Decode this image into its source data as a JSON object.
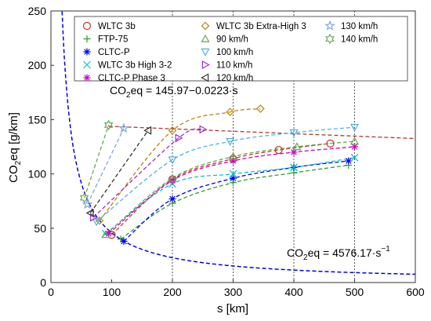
{
  "chart_data": {
    "type": "line",
    "xlabel": "s [km]",
    "ylabel": "CO2eq [g/km]",
    "xlim": [
      0,
      600
    ],
    "ylim": [
      0,
      250
    ],
    "xticks": [
      0,
      100,
      200,
      300,
      400,
      500,
      600
    ],
    "yticks": [
      0,
      50,
      100,
      150,
      200,
      250
    ],
    "grid": "vertical dotted lines at s = 200, 300, 400, 500",
    "legend_position": "top, inside, 3 columns",
    "series": [
      {
        "name": "WLTC 3b",
        "marker": "circle",
        "color": "#c0392b",
        "x": [
          100,
          200,
          300,
          375,
          460
        ],
        "y": [
          44,
          95,
          114,
          122,
          128
        ]
      },
      {
        "name": "FTP-75",
        "marker": "plus",
        "color": "#2ca02c",
        "x": [
          115,
          200,
          300,
          400,
          490
        ],
        "y": [
          40,
          73,
          92,
          101,
          108
        ]
      },
      {
        "name": "CLTC-P",
        "marker": "asterisk",
        "color": "#0000ee",
        "x": [
          120,
          200,
          300,
          400,
          490
        ],
        "y": [
          38,
          77,
          96,
          106,
          112
        ]
      },
      {
        "name": "WLTC 3b High 3-2",
        "marker": "x",
        "color": "#00c8c8",
        "x": [
          90,
          200,
          300,
          400,
          500
        ],
        "y": [
          45,
          91,
          100,
          106,
          115
        ]
      },
      {
        "name": "CLTC-P Phase 3",
        "marker": "asterisk",
        "color": "#cc00cc",
        "x": [
          95,
          200,
          300,
          400,
          500
        ],
        "y": [
          45,
          94,
          112,
          120,
          125
        ]
      },
      {
        "name": "WLTC 3b Extra-High 3",
        "marker": "diamond",
        "color": "#b8860b",
        "x": [
          80,
          200,
          295,
          345
        ],
        "y": [
          57,
          140,
          157,
          160
        ]
      },
      {
        "name": "90 km/h",
        "marker": "triangle-up",
        "color": "#6aa84f",
        "x": [
          90,
          200,
          300,
          405,
          500
        ],
        "y": [
          44,
          96,
          116,
          125,
          130
        ]
      },
      {
        "name": "100 km/h",
        "marker": "triangle-down",
        "color": "#4fb3e0",
        "x": [
          75,
          200,
          295,
          400,
          500
        ],
        "y": [
          56,
          113,
          130,
          138,
          143
        ]
      },
      {
        "name": "110 km/h",
        "marker": "triangle-right",
        "color": "#9b30c8",
        "x": [
          70,
          210,
          250
        ],
        "y": [
          60,
          133,
          141
        ]
      },
      {
        "name": "120 km/h",
        "marker": "triangle-left",
        "color": "#333333",
        "x": [
          65,
          160
        ],
        "y": [
          64,
          140
        ]
      },
      {
        "name": "130 km/h",
        "marker": "pentagram",
        "color": "#7fa7e0",
        "x": [
          60,
          120
        ],
        "y": [
          72,
          142
        ]
      },
      {
        "name": "140 km/h",
        "marker": "hexagram",
        "color": "#6aa84f",
        "x": [
          55,
          95
        ],
        "y": [
          78,
          145
        ]
      }
    ],
    "fit_lines": [
      {
        "label_parts": [
          "CO",
          "2",
          "eq = 145.97−0.0223·s"
        ],
        "a": 145.97,
        "b": -0.0223,
        "color": "#b03a2e"
      },
      {
        "label_parts": [
          "CO",
          "2",
          "eq = 4576.17·s",
          "−1"
        ],
        "k": 4576.17,
        "color": "#0000ee"
      }
    ]
  }
}
